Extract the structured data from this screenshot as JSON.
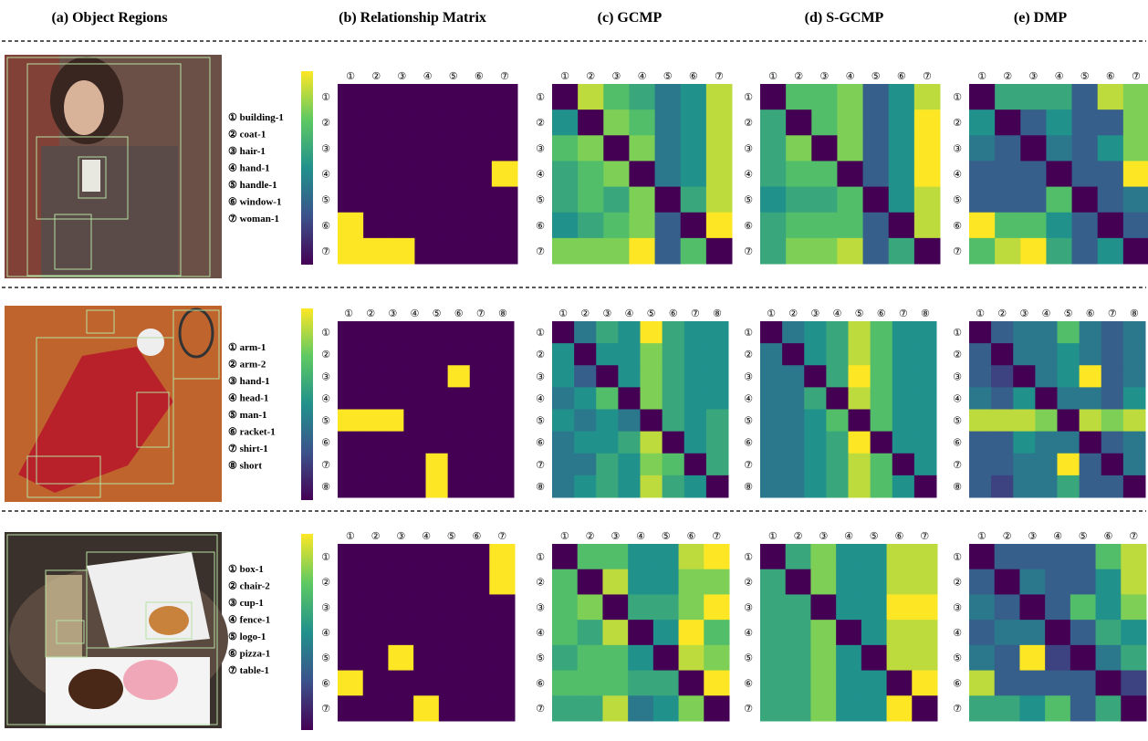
{
  "headers": [
    "(a) Object Regions",
    "(b) Relationship Matrix",
    "(c) GCMP",
    "(d) S-GCMP",
    "(e) DMP"
  ],
  "rows": [
    {
      "objects": [
        "① building-1",
        "② coat-1",
        "③ hair-1",
        "④ hand-1",
        "⑤ handle-1",
        "⑥ window-1",
        "⑦ woman-1"
      ],
      "indices": [
        "①",
        "②",
        "③",
        "④",
        "⑤",
        "⑥",
        "⑦"
      ],
      "relationship": [
        [
          0,
          0,
          0,
          0,
          0,
          0,
          0
        ],
        [
          0,
          0,
          0,
          0,
          0,
          0,
          0
        ],
        [
          0,
          0,
          0,
          0,
          0,
          0,
          0
        ],
        [
          0,
          0,
          0,
          0,
          0,
          0,
          1
        ],
        [
          0,
          0,
          0,
          0,
          0,
          0,
          0
        ],
        [
          1,
          0,
          0,
          0,
          0,
          0,
          0
        ],
        [
          1,
          1,
          1,
          0,
          0,
          0,
          0
        ]
      ],
      "gcmp": [
        [
          0,
          0.9,
          0.7,
          0.6,
          0.4,
          0.5,
          0.9
        ],
        [
          0.5,
          0,
          0.8,
          0.7,
          0.4,
          0.5,
          0.9
        ],
        [
          0.7,
          0.8,
          0,
          0.8,
          0.4,
          0.5,
          0.9
        ],
        [
          0.6,
          0.7,
          0.8,
          0,
          0.4,
          0.5,
          0.9
        ],
        [
          0.6,
          0.7,
          0.6,
          0.8,
          0,
          0.6,
          0.9
        ],
        [
          0.5,
          0.6,
          0.7,
          0.8,
          0.3,
          0,
          1
        ],
        [
          0.8,
          0.8,
          0.8,
          1,
          0.3,
          0.7,
          0
        ]
      ],
      "s_gcmp": [
        [
          0,
          0.7,
          0.7,
          0.8,
          0.3,
          0.5,
          0.9
        ],
        [
          0.6,
          0,
          0.7,
          0.8,
          0.3,
          0.5,
          1
        ],
        [
          0.6,
          0.8,
          0,
          0.8,
          0.3,
          0.5,
          1
        ],
        [
          0.6,
          0.7,
          0.7,
          0,
          0.3,
          0.5,
          1
        ],
        [
          0.5,
          0.6,
          0.6,
          0.7,
          0,
          0.5,
          0.9
        ],
        [
          0.6,
          0.7,
          0.7,
          0.7,
          0.3,
          0,
          0.9
        ],
        [
          0.6,
          0.8,
          0.8,
          0.9,
          0.3,
          0.6,
          0
        ]
      ],
      "dmp": [
        [
          0,
          0.6,
          0.6,
          0.6,
          0.3,
          0.9,
          0.8
        ],
        [
          0.5,
          0,
          0.3,
          0.5,
          0.3,
          0.3,
          0.8
        ],
        [
          0.4,
          0.3,
          0,
          0.4,
          0.3,
          0.5,
          0.8
        ],
        [
          0.3,
          0.3,
          0.3,
          0,
          0.3,
          0.3,
          1
        ],
        [
          0.3,
          0.3,
          0.3,
          0.7,
          0,
          0.3,
          0.4
        ],
        [
          1,
          0.7,
          0.7,
          0.5,
          0.3,
          0,
          0.3
        ],
        [
          0.7,
          0.9,
          1,
          0.6,
          0.3,
          0.5,
          0
        ]
      ]
    },
    {
      "objects": [
        "① arm-1",
        "② arm-2",
        "③ hand-1",
        "④ head-1",
        "⑤ man-1",
        "⑥ racket-1",
        "⑦ shirt-1",
        "⑧ short"
      ],
      "indices": [
        "①",
        "②",
        "③",
        "④",
        "⑤",
        "⑥",
        "⑦",
        "⑧"
      ],
      "relationship": [
        [
          0,
          0,
          0,
          0,
          0,
          0,
          0,
          0
        ],
        [
          0,
          0,
          0,
          0,
          0,
          0,
          0,
          0
        ],
        [
          0,
          0,
          0,
          0,
          0,
          1,
          0,
          0
        ],
        [
          0,
          0,
          0,
          0,
          0,
          0,
          0,
          0
        ],
        [
          1,
          1,
          1,
          0,
          0,
          0,
          0,
          0
        ],
        [
          0,
          0,
          0,
          0,
          0,
          0,
          0,
          0
        ],
        [
          0,
          0,
          0,
          0,
          1,
          0,
          0,
          0
        ],
        [
          0,
          0,
          0,
          0,
          1,
          0,
          0,
          0
        ]
      ],
      "gcmp": [
        [
          0,
          0.4,
          0.6,
          0.5,
          1,
          0.6,
          0.5,
          0.5
        ],
        [
          0.5,
          0,
          0.5,
          0.5,
          0.8,
          0.6,
          0.5,
          0.5
        ],
        [
          0.5,
          0.3,
          0,
          0.5,
          0.8,
          0.6,
          0.5,
          0.5
        ],
        [
          0.4,
          0.5,
          0.7,
          0,
          0.8,
          0.6,
          0.5,
          0.5
        ],
        [
          0.5,
          0.4,
          0.5,
          0.4,
          0,
          0.6,
          0.5,
          0.6
        ],
        [
          0.4,
          0.5,
          0.5,
          0.6,
          0.9,
          0,
          0.5,
          0.6
        ],
        [
          0.4,
          0.4,
          0.6,
          0.5,
          0.8,
          0.7,
          0,
          0.6
        ],
        [
          0.4,
          0.5,
          0.6,
          0.5,
          0.9,
          0.6,
          0.5,
          0
        ]
      ],
      "s_gcmp": [
        [
          0,
          0.4,
          0.5,
          0.6,
          0.9,
          0.7,
          0.5,
          0.5
        ],
        [
          0.4,
          0,
          0.5,
          0.6,
          0.9,
          0.7,
          0.5,
          0.5
        ],
        [
          0.4,
          0.4,
          0,
          0.6,
          1,
          0.7,
          0.5,
          0.5
        ],
        [
          0.4,
          0.4,
          0.6,
          0,
          0.9,
          0.7,
          0.5,
          0.5
        ],
        [
          0.4,
          0.4,
          0.5,
          0.7,
          0,
          0.7,
          0.5,
          0.5
        ],
        [
          0.4,
          0.4,
          0.5,
          0.6,
          1,
          0,
          0.5,
          0.5
        ],
        [
          0.4,
          0.4,
          0.5,
          0.6,
          0.9,
          0.7,
          0,
          0.5
        ],
        [
          0.4,
          0.4,
          0.5,
          0.6,
          0.9,
          0.7,
          0.5,
          0
        ]
      ],
      "dmp": [
        [
          0,
          0.3,
          0.4,
          0.4,
          0.7,
          0.4,
          0.3,
          0.4
        ],
        [
          0.3,
          0,
          0.4,
          0.4,
          0.5,
          0.4,
          0.3,
          0.4
        ],
        [
          0.3,
          0.2,
          0,
          0.4,
          0.5,
          1,
          0.3,
          0.4
        ],
        [
          0.4,
          0.3,
          0.5,
          0,
          0.4,
          0.4,
          0.3,
          0.5
        ],
        [
          0.9,
          0.9,
          0.9,
          0.8,
          0,
          0.9,
          0.8,
          0.9
        ],
        [
          0.3,
          0.3,
          0.5,
          0.4,
          0.4,
          0,
          0.3,
          0.4
        ],
        [
          0.3,
          0.3,
          0.4,
          0.4,
          1,
          0.3,
          0,
          0.4
        ],
        [
          0.3,
          0.2,
          0.4,
          0.4,
          0.6,
          0.3,
          0.3,
          0
        ]
      ]
    },
    {
      "objects": [
        "① box-1",
        "② chair-2",
        "③ cup-1",
        "④ fence-1",
        "⑤ logo-1",
        "⑥ pizza-1",
        "⑦ table-1"
      ],
      "indices": [
        "①",
        "②",
        "③",
        "④",
        "⑤",
        "⑥",
        "⑦"
      ],
      "relationship": [
        [
          0,
          0,
          0,
          0,
          0,
          0,
          1
        ],
        [
          0,
          0,
          0,
          0,
          0,
          0,
          1
        ],
        [
          0,
          0,
          0,
          0,
          0,
          0,
          0
        ],
        [
          0,
          0,
          0,
          0,
          0,
          0,
          0
        ],
        [
          0,
          0,
          1,
          0,
          0,
          0,
          0
        ],
        [
          1,
          0,
          0,
          0,
          0,
          0,
          0
        ],
        [
          0,
          0,
          0,
          1,
          0,
          0,
          0
        ]
      ],
      "gcmp": [
        [
          0,
          0.7,
          0.7,
          0.5,
          0.5,
          0.9,
          1
        ],
        [
          0.7,
          0,
          0.9,
          0.5,
          0.5,
          0.8,
          0.8
        ],
        [
          0.7,
          0.8,
          0,
          0.6,
          0.6,
          0.8,
          1
        ],
        [
          0.7,
          0.6,
          0.9,
          0,
          0.5,
          1,
          0.7
        ],
        [
          0.6,
          0.7,
          0.7,
          0.5,
          0,
          0.9,
          0.8
        ],
        [
          0.7,
          0.7,
          0.7,
          0.6,
          0.6,
          0,
          1
        ],
        [
          0.6,
          0.6,
          0.9,
          0.4,
          0.5,
          0.8,
          0
        ]
      ],
      "s_gcmp": [
        [
          0,
          0.6,
          0.8,
          0.5,
          0.5,
          0.9,
          0.9
        ],
        [
          0.6,
          0,
          0.8,
          0.5,
          0.5,
          0.9,
          0.9
        ],
        [
          0.6,
          0.6,
          0,
          0.5,
          0.5,
          1,
          1
        ],
        [
          0.6,
          0.6,
          0.8,
          0,
          0.5,
          0.9,
          0.9
        ],
        [
          0.6,
          0.6,
          0.8,
          0.5,
          0,
          0.9,
          0.9
        ],
        [
          0.6,
          0.6,
          0.8,
          0.5,
          0.5,
          0,
          1
        ],
        [
          0.6,
          0.6,
          0.8,
          0.5,
          0.5,
          1,
          0
        ]
      ],
      "dmp": [
        [
          0,
          0.3,
          0.3,
          0.3,
          0.3,
          0.7,
          0.9
        ],
        [
          0.3,
          0,
          0.4,
          0.3,
          0.3,
          0.5,
          0.9
        ],
        [
          0.4,
          0.3,
          0,
          0.3,
          0.7,
          0.5,
          0.8
        ],
        [
          0.3,
          0.4,
          0.4,
          0,
          0.3,
          0.6,
          0.5
        ],
        [
          0.4,
          0.3,
          1,
          0.2,
          0,
          0.4,
          0.6
        ],
        [
          0.9,
          0.3,
          0.3,
          0.3,
          0.3,
          0,
          0.2
        ],
        [
          0.6,
          0.6,
          0.5,
          0.7,
          0.3,
          0.6,
          0
        ]
      ]
    }
  ]
}
